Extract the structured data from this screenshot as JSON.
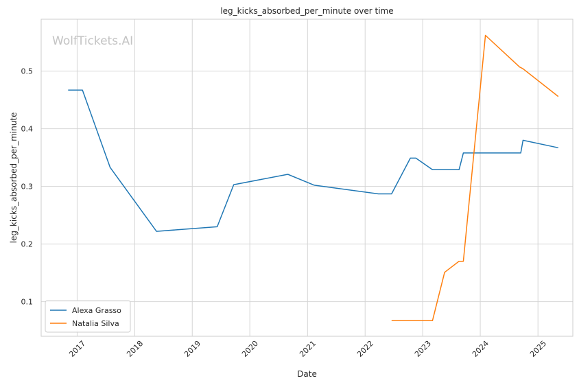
{
  "watermark": "WolfTickets.AI",
  "chart_data": {
    "type": "line",
    "title": "leg_kicks_absorbed_per_minute over time",
    "xlabel": "Date",
    "ylabel": "leg_kicks_absorbed_per_minute",
    "x_ticks": [
      "2017",
      "2018",
      "2019",
      "2020",
      "2021",
      "2022",
      "2023",
      "2024",
      "2025"
    ],
    "y_ticks": [
      0.1,
      0.2,
      0.3,
      0.4,
      0.5
    ],
    "xlim": [
      "2016-05-18",
      "2025-08-10"
    ],
    "ylim": [
      0.04,
      0.59
    ],
    "grid": true,
    "legend_position": "lower-left",
    "series": [
      {
        "name": "Alexa Grasso",
        "color": "#1f77b4",
        "points": [
          [
            "2016-11-05",
            0.467
          ],
          [
            "2017-02-04",
            0.467
          ],
          [
            "2017-07-29",
            0.333
          ],
          [
            "2018-05-19",
            0.222
          ],
          [
            "2019-06-08",
            0.23
          ],
          [
            "2019-09-21",
            0.303
          ],
          [
            "2020-08-29",
            0.321
          ],
          [
            "2021-02-13",
            0.302
          ],
          [
            "2022-03-26",
            0.287
          ],
          [
            "2022-06-18",
            0.287
          ],
          [
            "2022-10-15",
            0.349
          ],
          [
            "2022-11-19",
            0.349
          ],
          [
            "2023-03-04",
            0.329
          ],
          [
            "2023-08-20",
            0.329
          ],
          [
            "2023-09-16",
            0.358
          ],
          [
            "2024-09-14",
            0.358
          ],
          [
            "2024-09-28",
            0.38
          ],
          [
            "2025-05-10",
            0.367
          ]
        ]
      },
      {
        "name": "Natalia Silva",
        "color": "#ff7f0e",
        "points": [
          [
            "2022-06-18",
            0.067
          ],
          [
            "2023-03-04",
            0.067
          ],
          [
            "2023-05-20",
            0.151
          ],
          [
            "2023-08-19",
            0.17
          ],
          [
            "2023-09-16",
            0.17
          ],
          [
            "2024-02-03",
            0.562
          ],
          [
            "2024-09-07",
            0.507
          ],
          [
            "2024-09-28",
            0.504
          ],
          [
            "2025-05-10",
            0.456
          ]
        ]
      }
    ]
  }
}
